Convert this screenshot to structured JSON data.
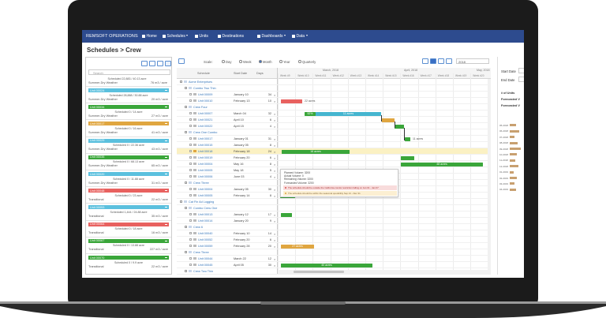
{
  "nav": {
    "brand": "REMSOFT OPERATIONS",
    "items": [
      "Home",
      "Schedules",
      "Units",
      "Destinations",
      "Dashboards",
      "Data"
    ]
  },
  "page_title": "Schedules > Crew",
  "left_panel": {
    "search_placeholder": "Search",
    "partial_item": {
      "scheduled": "Scheduled 22,883 / 40.13 acre",
      "condition": "Summer-Dry Weather",
      "rate": "76 m3 / acre"
    },
    "items": [
      {
        "unit": "Unit 00024",
        "color": "#5bc0de",
        "scheduled": "Scheduled 28,888 / 30.88 acre",
        "condition": "Summer-Dry Weather",
        "rate": "20 m3 / acre"
      },
      {
        "unit": "Unit 00034",
        "color": "#3aa63a",
        "scheduled": "Scheduled 0 / 14 acre",
        "condition": "Summer-Dry Weather",
        "rate": "27 m3 / acre"
      },
      {
        "unit": "Unit 00017",
        "color": "#e0a640",
        "scheduled": "Scheduled 0 / 16 acre",
        "condition": "Summer-Dry Weather",
        "rate": "41 m3 / acre"
      },
      {
        "unit": "Unit 00029",
        "color": "#5bc0de",
        "scheduled": "Scheduled 0 / 22.36 acre",
        "condition": "Summer-Dry Weather",
        "rate": "43 m3 / acre"
      },
      {
        "unit": "Unit 00035",
        "color": "#3aa63a",
        "scheduled": "Scheduled 0 / 68.13 acre",
        "condition": "Summer-Dry Weather",
        "rate": "65 m3 / acre"
      },
      {
        "unit": "Unit 00020",
        "color": "#5bc0de",
        "scheduled": "Scheduled 0 / 11.88 acre",
        "condition": "Summer-Dry Weather",
        "rate": "31 m3 / acre"
      },
      {
        "unit": "Unit 00048",
        "color": "#e8615f",
        "scheduled": "Scheduled 0 / 23 acre",
        "condition": "Transitional",
        "rate": "22 m3 / acre"
      },
      {
        "unit": "Unit 00053",
        "color": "#5bc0de",
        "scheduled": "Scheduled 1,444 / 24.88 acre",
        "condition": "Transitional",
        "rate": "35 m3 / acre"
      },
      {
        "unit": "Unit 00064",
        "color": "#e8615f",
        "scheduled": "Scheduled 0 / 18 acre",
        "condition": "Transitional",
        "rate": "16 m3 / acre"
      },
      {
        "unit": "Unit 00067",
        "color": "#3aa63a",
        "scheduled": "Scheduled 0 / 13.88 acre",
        "condition": "Transitional",
        "rate": "227 m3 / acre"
      },
      {
        "unit": "Unit 00070",
        "color": "#3aa63a",
        "scheduled": "Scheduled 0 / 9.9 acre",
        "condition": "Transitional",
        "rate": "22 m3 / acre"
      }
    ]
  },
  "gantt": {
    "scale_label": "Scale:",
    "scales": [
      "Day",
      "Week",
      "Month",
      "Year",
      "Quarterly"
    ],
    "year": "2018",
    "columns": [
      "Schedule",
      "Start Date",
      "Days"
    ],
    "months": [
      "March, 2018",
      "April, 2018",
      "May, 2018"
    ],
    "weeks": [
      "Week #9",
      "Week #10",
      "Week #11",
      "Week #12",
      "Week #13",
      "Week #14",
      "Week #15",
      "Week #16",
      "Week #17",
      "Week #18",
      "Week #19",
      "Week #20"
    ],
    "rows": [
      {
        "name": "Acme Enterprises",
        "level": 0
      },
      {
        "name": "Combo Two Thin",
        "level": 1
      },
      {
        "name": "Unit 00009",
        "level": 2,
        "start": "January 10",
        "days": "34"
      },
      {
        "name": "Unit 00010",
        "level": 2,
        "start": "February 13",
        "days": "10"
      },
      {
        "name": "Crew Four",
        "level": 1
      },
      {
        "name": "Unit 00007",
        "level": 2,
        "start": "March 04",
        "days": "32"
      },
      {
        "name": "Unit 00021",
        "level": 2,
        "start": "April 10",
        "days": "6"
      },
      {
        "name": "Unit 00022",
        "level": 2,
        "start": "April 15",
        "days": "4"
      },
      {
        "name": "Crew One Combo",
        "level": 1
      },
      {
        "name": "Unit 00017",
        "level": 2,
        "start": "January 01",
        "days": "31"
      },
      {
        "name": "Unit 00015",
        "level": 2,
        "start": "January 05",
        "days": "8"
      },
      {
        "name": "Unit 00018",
        "level": 2,
        "start": "February 18",
        "days": "24"
      },
      {
        "name": "Unit 00019",
        "level": 2,
        "start": "February 20",
        "days": "6"
      },
      {
        "name": "Unit 00004",
        "level": 2,
        "start": "May 16",
        "days": "8"
      },
      {
        "name": "Unit 00005",
        "level": 2,
        "start": "May 18",
        "days": "5"
      },
      {
        "name": "Unit 00006",
        "level": 2,
        "start": "June 03",
        "days": "4"
      },
      {
        "name": "Crew Three",
        "level": 1
      },
      {
        "name": "Unit 00004",
        "level": 2,
        "start": "January 05",
        "days": "30"
      },
      {
        "name": "Unit 00005",
        "level": 2,
        "start": "February 14",
        "days": "8"
      },
      {
        "name": "Cat Fin Ad Logging",
        "level": 0
      },
      {
        "name": "Combo Crew One",
        "level": 1
      },
      {
        "name": "Unit 00013",
        "level": 2,
        "start": "January 12",
        "days": "17"
      },
      {
        "name": "Unit 00014",
        "level": 2,
        "start": "January 20",
        "days": "9"
      },
      {
        "name": "Crew 6",
        "level": 1
      },
      {
        "name": "Unit 00040",
        "level": 2,
        "start": "February 10",
        "days": "14"
      },
      {
        "name": "Unit 00052",
        "level": 2,
        "start": "February 20",
        "days": "6"
      },
      {
        "name": "Unit 00059",
        "level": 2,
        "start": "February 28",
        "days": "20"
      },
      {
        "name": "Crew Three",
        "level": 1
      },
      {
        "name": "Unit 00044",
        "level": 2,
        "start": "March 22",
        "days": "12"
      },
      {
        "name": "Unit 00045",
        "level": 2,
        "start": "April 05",
        "days": "30"
      },
      {
        "name": "Crew Two Thin",
        "level": 1
      }
    ],
    "bar_labels": [
      "22 acres",
      "52%",
      "11 acres",
      "11 acres",
      "16 acres",
      "48 acres",
      "27 acres",
      "40 acres"
    ],
    "tooltip": {
      "lines": [
        "Planned Volume: 3200",
        "Actual Volume: 0",
        "Remaining Volume: 3200",
        "Forecasted Volume: 3200"
      ],
      "warnings": [
        "The schedule should be outside the California condor restriction falling on Jan 01 - Jan 07",
        "The schedule should be within the seasonal operability Sep 21 - Dec 31"
      ]
    }
  },
  "right_panel": {
    "fields": [
      "Start Date",
      "End Date"
    ],
    "stats": [
      "# of Units",
      "Forecasted V",
      "Forecasted V"
    ],
    "chart_labels": [
      "05-2018",
      "06-2018",
      "07-2018",
      "08-2018",
      "09-2018",
      "10-2018",
      "11-2018",
      "12-2018",
      "01-2019",
      "02-2019",
      "03-2019",
      "04-2019"
    ]
  }
}
